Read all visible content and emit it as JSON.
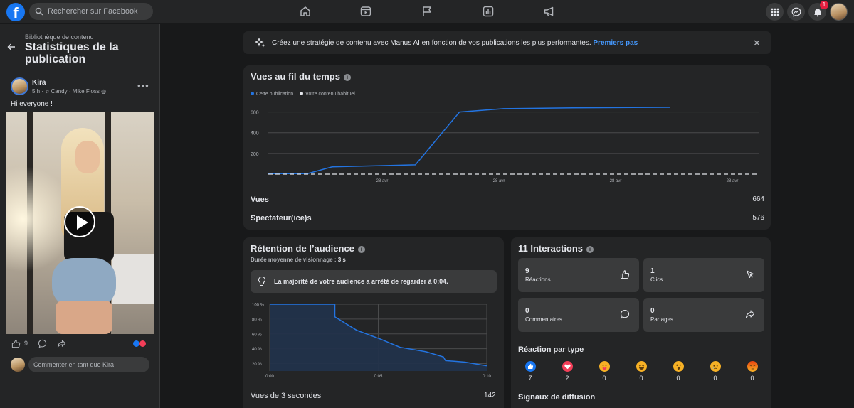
{
  "topbar": {
    "logo": "f",
    "search_placeholder": "Rechercher sur Facebook",
    "notification_count": "1",
    "nav_icons": [
      "home-icon",
      "video-icon",
      "pages-flag-icon",
      "insights-icon",
      "ads-megaphone-icon"
    ],
    "right_icons": [
      "menu-grid-icon",
      "messenger-icon",
      "notifications-bell-icon"
    ]
  },
  "left": {
    "breadcrumb": "Bibliothèque de contenu",
    "title": "Statistiques de la publication",
    "post": {
      "author": "Kira",
      "time": "5 h",
      "music": "♫ Candy · Mike Floss",
      "text": "Hi everyone !",
      "likes": "9",
      "comment_placeholder": "Commenter en tant que Kira"
    }
  },
  "banner": {
    "text": "Créez une stratégie de contenu avec Manus AI en fonction de vos publications les plus performantes.",
    "link": "Premiers pas"
  },
  "views_card": {
    "title": "Vues au fil du temps",
    "legend": [
      "Cette publication",
      "Votre contenu habituel"
    ],
    "stats": [
      {
        "label": "Vues",
        "value": "664"
      },
      {
        "label": "Spectateur(ice)s",
        "value": "576"
      }
    ]
  },
  "retention_card": {
    "title": "Rétention de l’audience",
    "avg_label": "Durée moyenne de visionnage :",
    "avg_value": "3 s",
    "insight": "La majorité de votre audience a arrêté de regarder à 0:04.",
    "views_3s_label": "Vues de 3 secondes",
    "views_3s_value": "142"
  },
  "interactions_card": {
    "title": "11 Interactions",
    "tiles": [
      {
        "value": "9",
        "label": "Réactions",
        "icon": "like-icon"
      },
      {
        "value": "1",
        "label": "Clics",
        "icon": "cursor-icon"
      },
      {
        "value": "0",
        "label": "Commentaires",
        "icon": "comment-icon"
      },
      {
        "value": "0",
        "label": "Partages",
        "icon": "share-icon"
      }
    ],
    "reaction_title": "Réaction par type",
    "reactions": [
      {
        "type": "like",
        "count": "7",
        "color": "#1877f2"
      },
      {
        "type": "love",
        "count": "2",
        "color": "#f33e58"
      },
      {
        "type": "care",
        "count": "0",
        "color": "#f7b125"
      },
      {
        "type": "haha",
        "count": "0",
        "color": "#f7b125"
      },
      {
        "type": "wow",
        "count": "0",
        "color": "#f7b125"
      },
      {
        "type": "sad",
        "count": "0",
        "color": "#f7b125"
      },
      {
        "type": "angry",
        "count": "0",
        "color": "#e9710f"
      }
    ],
    "signals_title": "Signaux de diffusion"
  },
  "chart_data": [
    {
      "type": "line",
      "x_tick_labels": [
        "28 avr",
        "28 avr",
        "28 avr",
        "28 avr"
      ],
      "y_ticks": [
        200,
        400,
        600
      ],
      "ylim": [
        0,
        700
      ],
      "grid": true,
      "legend_placement": "top-left",
      "series": [
        {
          "name": "Cette publication",
          "color": "#2374e1",
          "style": "solid",
          "points": [
            [
              0,
              5
            ],
            [
              8,
              5
            ],
            [
              13,
              70
            ],
            [
              30,
              90
            ],
            [
              39,
              600
            ],
            [
              48,
              632
            ],
            [
              62,
              640
            ],
            [
              82,
              645
            ]
          ]
        },
        {
          "name": "Votre contenu habituel",
          "color": "#e4e6eb",
          "style": "dashed",
          "points": [
            [
              0,
              0
            ],
            [
              100,
              0
            ]
          ]
        }
      ],
      "x_range": [
        0,
        100
      ]
    },
    {
      "type": "area",
      "x_tick_labels": [
        "0:00",
        "0:05",
        "0:10"
      ],
      "y_tick_labels": [
        "100 %",
        "80 %",
        "60 %",
        "40 %",
        "20 %"
      ],
      "xlim": [
        0,
        10
      ],
      "ylim": [
        10,
        100
      ],
      "grid": true,
      "series": [
        {
          "color": "#2374e1",
          "points": [
            [
              0,
              100
            ],
            [
              3.0,
              100
            ],
            [
              3.0,
              83
            ],
            [
              4.0,
              65
            ],
            [
              5.1,
              53
            ],
            [
              6.0,
              42
            ],
            [
              7.2,
              36
            ],
            [
              8.0,
              29
            ],
            [
              8.1,
              24
            ],
            [
              9.0,
              22
            ],
            [
              10,
              17
            ]
          ]
        }
      ]
    }
  ]
}
